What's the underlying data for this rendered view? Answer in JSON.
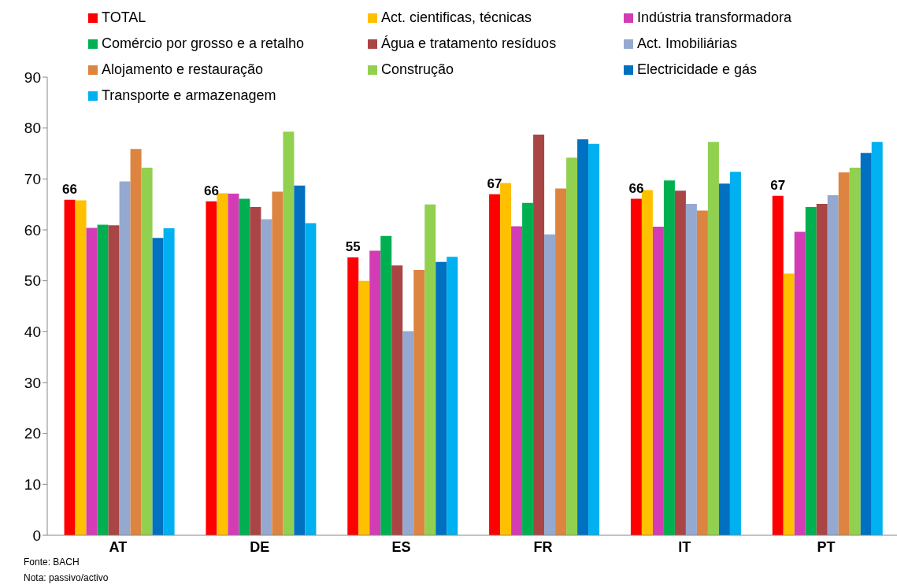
{
  "chart_data": {
    "type": "bar",
    "categories": [
      "AT",
      "DE",
      "ES",
      "FR",
      "IT",
      "PT"
    ],
    "series": [
      {
        "name": "TOTAL",
        "color": "#ff0000",
        "values": [
          65.9,
          65.6,
          54.6,
          67.0,
          66.1,
          66.7
        ],
        "value_labels": [
          "66",
          "66",
          "55",
          "67",
          "66",
          "67"
        ]
      },
      {
        "name": "Act. cientificas, técnicas",
        "color": "#ffc000",
        "values": [
          65.8,
          67.2,
          50.0,
          69.2,
          67.8,
          51.4
        ]
      },
      {
        "name": "Indústria transformadora",
        "color": "#d33cb4",
        "values": [
          60.4,
          67.1,
          55.9,
          60.7,
          60.6,
          59.6
        ]
      },
      {
        "name": "Comércio por grosso e a retalho",
        "color": "#00b050",
        "values": [
          61.0,
          66.1,
          58.8,
          65.3,
          69.7,
          64.5
        ]
      },
      {
        "name": "Água e tratamento resíduos",
        "color": "#a94545",
        "values": [
          60.9,
          64.5,
          53.0,
          78.7,
          67.7,
          65.1
        ]
      },
      {
        "name": "Act. Imobiliárias",
        "color": "#95a9d0",
        "values": [
          69.5,
          62.1,
          40.1,
          59.1,
          65.1,
          66.8
        ]
      },
      {
        "name": "Alojamento e restauração",
        "color": "#dd8440",
        "values": [
          75.9,
          67.5,
          52.1,
          68.1,
          63.8,
          71.3
        ]
      },
      {
        "name": "Construção",
        "color": "#92d050",
        "values": [
          72.2,
          79.3,
          65.0,
          74.2,
          77.3,
          72.2
        ]
      },
      {
        "name": "Electricidade e gás",
        "color": "#0070c0",
        "values": [
          58.4,
          68.7,
          53.7,
          77.8,
          69.1,
          75.1
        ]
      },
      {
        "name": "Transporte e armazenagem",
        "color": "#00b0f0",
        "values": [
          60.3,
          61.3,
          54.7,
          76.9,
          71.4,
          77.3
        ]
      }
    ],
    "ylim": [
      0,
      90
    ],
    "yticks": [
      0,
      10,
      20,
      30,
      40,
      50,
      60,
      70,
      80,
      90
    ],
    "legend": "top",
    "annotations": [
      "Fonte: BACH",
      "Nota: passivo/activo"
    ]
  }
}
